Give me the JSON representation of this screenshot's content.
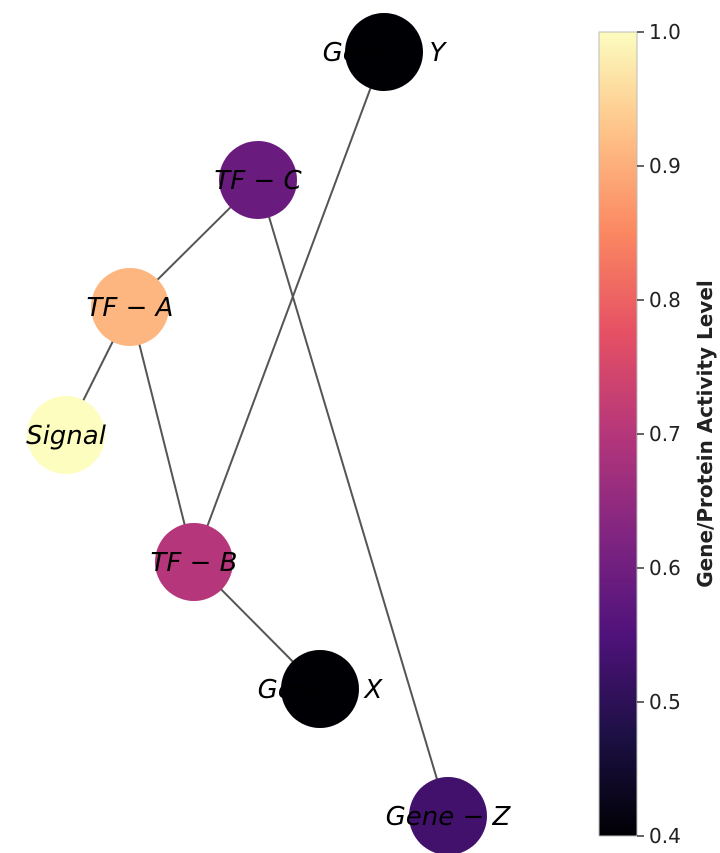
{
  "network": {
    "nodes": [
      {
        "id": "gene_y",
        "label": "Gene − Y",
        "activity": 0.4
      },
      {
        "id": "tf_c",
        "label": "TF − C",
        "activity": 0.59
      },
      {
        "id": "tf_a",
        "label": "TF − A",
        "activity": 0.91
      },
      {
        "id": "signal",
        "label": "Signal",
        "activity": 1.0
      },
      {
        "id": "tf_b",
        "label": "TF − B",
        "activity": 0.7
      },
      {
        "id": "gene_x",
        "label": "Gene − X",
        "activity": 0.4
      },
      {
        "id": "gene_z",
        "label": "Gene − Z",
        "activity": 0.53
      }
    ],
    "edges": [
      [
        "gene_y",
        "tf_b"
      ],
      [
        "tf_c",
        "tf_a"
      ],
      [
        "tf_c",
        "gene_z"
      ],
      [
        "tf_a",
        "signal"
      ],
      [
        "tf_a",
        "tf_b"
      ],
      [
        "tf_b",
        "gene_x"
      ]
    ]
  },
  "colorbar": {
    "title": "Gene/Protein Activity Level",
    "min": 0.4,
    "max": 1.0,
    "ticks": [
      "0.4",
      "0.5",
      "0.6",
      "0.7",
      "0.8",
      "0.9",
      "1.0"
    ],
    "colormap": "magma",
    "colors": [
      "#000004",
      "#1c1044",
      "#4f127b",
      "#812581",
      "#b5367a",
      "#e55064",
      "#fb8761",
      "#fec287",
      "#fcfdbf"
    ],
    "edge_color": "#555555"
  }
}
